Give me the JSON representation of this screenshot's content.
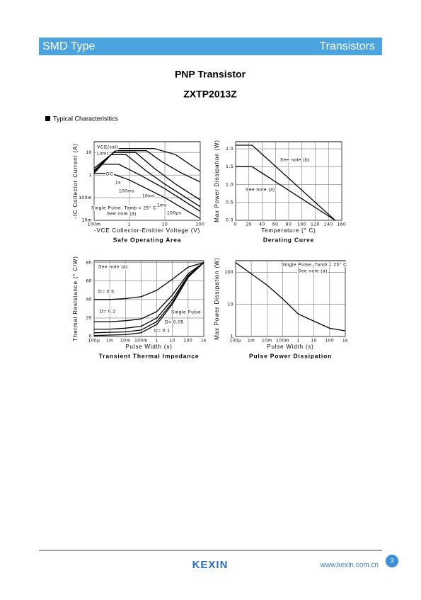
{
  "header": {
    "left": "SMD Type",
    "right": "Transistors"
  },
  "title": "PNP Transistor",
  "part": "ZXTP2013Z",
  "section": "Typical  Characterisitics",
  "chart_data": [
    {
      "type": "line",
      "title": "Safe Operating Area",
      "x_label": "-VCE Collector-Emitter Voltage (V)",
      "y_label": "-IC Collector Current (A)",
      "xlog": true,
      "ylog": true,
      "grid": true,
      "xlim": [
        0.1,
        100
      ],
      "ylim": [
        0.01,
        30
      ],
      "xticks": [
        {
          "value": 0.1,
          "label": "100m"
        },
        1,
        10,
        100
      ],
      "yticks": [
        {
          "value": 0.01,
          "label": "10m"
        },
        {
          "value": 0.1,
          "label": "100m"
        },
        1,
        10
      ],
      "series": [
        {
          "name": "DC",
          "color": "#000000",
          "x": [
            0.1,
            0.3,
            1,
            10,
            100
          ],
          "values": [
            1.2,
            1.2,
            0.6,
            0.1,
            0.012
          ]
        },
        {
          "name": "1s",
          "color": "#000000",
          "x": [
            0.15,
            0.5,
            2,
            10,
            100
          ],
          "values": [
            3,
            3,
            1,
            0.25,
            0.025
          ]
        },
        {
          "name": "100ms",
          "color": "#000000",
          "x": [
            0.1,
            0.3,
            0.8,
            3,
            10,
            100
          ],
          "values": [
            1.2,
            8,
            8,
            1.5,
            0.4,
            0.04
          ]
        },
        {
          "name": "10ms",
          "color": "#000000",
          "x": [
            0.1,
            0.35,
            1.5,
            5,
            20,
            100
          ],
          "values": [
            1.4,
            10,
            10,
            2,
            0.4,
            0.08
          ]
        },
        {
          "name": "1ms",
          "color": "#000000",
          "x": [
            0.1,
            0.4,
            3,
            8,
            30,
            100
          ],
          "values": [
            1.6,
            12,
            12,
            4,
            1.2,
            0.5
          ]
        },
        {
          "name": "100µs",
          "color": "#000000",
          "x": [
            0.1,
            0.5,
            5,
            20,
            60,
            100
          ],
          "values": [
            2,
            15,
            15,
            8,
            2.5,
            1.5
          ]
        }
      ],
      "annotations": [
        "VCE(sat)",
        "Limit",
        "Single Pulse. Tamb = 25° C",
        "See note (a)"
      ]
    },
    {
      "type": "line",
      "title": "Derating Curve",
      "x_label": "Temperature (° C)",
      "y_label": "Max Power Dissipation (W)",
      "xlog": false,
      "ylog": false,
      "grid": true,
      "xlim": [
        0,
        160
      ],
      "ylim": [
        0,
        2.2
      ],
      "xticks": [
        0,
        20,
        40,
        60,
        80,
        100,
        120,
        140,
        160
      ],
      "yticks": [
        {
          "value": 0,
          "label": "0.0"
        },
        0.5,
        {
          "value": 1,
          "label": "1.0"
        },
        1.5,
        {
          "value": 2,
          "label": "2.0"
        }
      ],
      "series": [
        {
          "name": "See note (b)",
          "color": "#000000",
          "x": [
            0,
            25,
            150
          ],
          "values": [
            2.1,
            2.1,
            0
          ]
        },
        {
          "name": "See note (a)",
          "color": "#000000",
          "x": [
            0,
            25,
            150
          ],
          "values": [
            1.5,
            1.5,
            0
          ]
        }
      ],
      "annotations": []
    },
    {
      "type": "line",
      "title": "Transient Thermal Impedance",
      "x_label": "Pulse Width (s)",
      "y_label": "Thermal Resistance (° C/W)",
      "xlog": true,
      "ylog": false,
      "grid": true,
      "xlim": [
        0.0001,
        1000
      ],
      "ylim": [
        0,
        82
      ],
      "xticks": [
        {
          "value": 0.0001,
          "label": "100µ"
        },
        {
          "value": 0.001,
          "label": "1m"
        },
        {
          "value": 0.01,
          "label": "10m"
        },
        {
          "value": 0.1,
          "label": "100m"
        },
        1,
        10,
        100,
        {
          "value": 1000,
          "label": "1k"
        }
      ],
      "yticks": [
        0,
        20,
        40,
        60,
        80
      ],
      "series": [
        {
          "name": "D= 0.5",
          "color": "#000000",
          "x": [
            0.0001,
            0.001,
            0.01,
            0.1,
            1,
            10,
            100,
            1000
          ],
          "values": [
            40,
            40,
            41,
            43,
            50,
            62,
            75,
            80
          ]
        },
        {
          "name": "D= 0.2",
          "color": "#000000",
          "x": [
            0.0001,
            0.001,
            0.01,
            0.1,
            1,
            10,
            100,
            1000
          ],
          "values": [
            16,
            16,
            17,
            19,
            27,
            45,
            68,
            80
          ]
        },
        {
          "name": "D= 0.1",
          "color": "#000000",
          "x": [
            0.0001,
            0.001,
            0.01,
            0.1,
            1,
            10,
            100,
            1000
          ],
          "values": [
            8,
            8,
            9,
            11,
            20,
            40,
            66,
            80
          ]
        },
        {
          "name": "D= 0.05",
          "color": "#000000",
          "x": [
            0.0001,
            0.001,
            0.01,
            0.1,
            1,
            10,
            100,
            1000
          ],
          "values": [
            4,
            4.5,
            5,
            7,
            16,
            37,
            65,
            80
          ]
        },
        {
          "name": "Single Pulse",
          "color": "#000000",
          "x": [
            0.0001,
            0.001,
            0.01,
            0.1,
            1,
            10,
            100,
            1000
          ],
          "values": [
            1,
            1.5,
            2,
            4,
            13,
            35,
            64,
            80
          ]
        }
      ],
      "annotations": [
        "See note (a)"
      ]
    },
    {
      "type": "line",
      "title": "Pulse Power Dissipation",
      "x_label": "Pulse Width (s)",
      "y_label": "Max Power Dissipation (W)",
      "xlog": true,
      "ylog": true,
      "grid": true,
      "xlim": [
        0.0001,
        1000
      ],
      "ylim": [
        1,
        230
      ],
      "xticks": [
        {
          "value": 0.0001,
          "label": "100µ"
        },
        {
          "value": 0.001,
          "label": "1m"
        },
        {
          "value": 0.01,
          "label": "10m"
        },
        {
          "value": 0.1,
          "label": "100m"
        },
        1,
        10,
        100,
        {
          "value": 1000,
          "label": "1k"
        }
      ],
      "yticks": [
        1,
        10,
        100
      ],
      "series": [
        {
          "color": "#000000",
          "x": [
            0.0001,
            0.001,
            0.01,
            0.1,
            1,
            10,
            100,
            1000
          ],
          "values": [
            200,
            90,
            40,
            15,
            5,
            3,
            1.8,
            1.5
          ]
        }
      ],
      "annotations": [
        "Single Pulse. Tamb = 25° C",
        "See note (a)"
      ]
    }
  ],
  "footer": {
    "logo": "KEXIN",
    "url": "www.kexin.com.cn",
    "page": "3"
  }
}
